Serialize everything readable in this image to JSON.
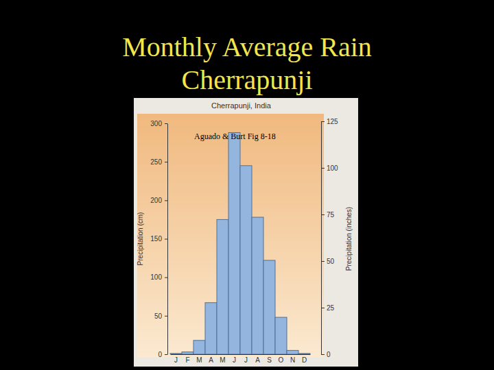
{
  "slide_title": [
    "Monthly Average Rain",
    "Cherrapunji"
  ],
  "chart_data": {
    "type": "bar",
    "title": "Cherrapunji, India",
    "annotation": "Aguado & Burt Fig 8-18",
    "ylabel": "Precipitation (cm)",
    "y2label": "Precipitation (inches)",
    "categories": [
      "J",
      "F",
      "M",
      "A",
      "M",
      "J",
      "J",
      "A",
      "S",
      "O",
      "N",
      "D"
    ],
    "values": [
      1,
      3,
      18,
      67,
      175,
      288,
      245,
      178,
      122,
      48,
      5,
      1
    ],
    "color": "#94b6de",
    "ylim": [
      0,
      300
    ],
    "yticks": [
      0,
      50,
      100,
      150,
      200,
      250,
      300
    ],
    "y2lim": [
      0,
      125
    ],
    "y2ticks": [
      0,
      25,
      50,
      75,
      100,
      125
    ],
    "grid": false
  }
}
